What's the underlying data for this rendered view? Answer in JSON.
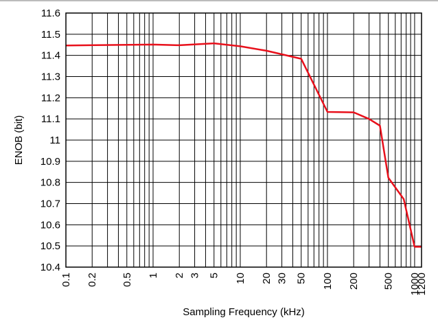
{
  "chart_data": {
    "type": "line",
    "xlabel": "Sampling Frequency (kHz)",
    "ylabel": "ENOB (bit)",
    "x_scale": "log",
    "xlim": [
      0.1,
      1200
    ],
    "ylim": [
      10.4,
      11.6
    ],
    "grid": true,
    "x_ticks": [
      {
        "value": 0.1,
        "label": "0.1"
      },
      {
        "value": 0.2,
        "label": "0.2"
      },
      {
        "value": 0.5,
        "label": "0.5"
      },
      {
        "value": 1,
        "label": "1"
      },
      {
        "value": 2,
        "label": "2"
      },
      {
        "value": 3,
        "label": "3"
      },
      {
        "value": 5,
        "label": "5"
      },
      {
        "value": 10,
        "label": "10"
      },
      {
        "value": 20,
        "label": "20"
      },
      {
        "value": 30,
        "label": "30"
      },
      {
        "value": 50,
        "label": "50"
      },
      {
        "value": 100,
        "label": "100"
      },
      {
        "value": 200,
        "label": "200"
      },
      {
        "value": 500,
        "label": "500"
      },
      {
        "value": 1000,
        "label": "1000"
      },
      {
        "value": 1200,
        "label": "1200"
      }
    ],
    "y_ticks": [
      {
        "value": 11.6,
        "label": "11.6"
      },
      {
        "value": 11.5,
        "label": "11.5"
      },
      {
        "value": 11.4,
        "label": "11.4"
      },
      {
        "value": 11.3,
        "label": "11.3"
      },
      {
        "value": 11.2,
        "label": "11.2"
      },
      {
        "value": 11.1,
        "label": "11.1"
      },
      {
        "value": 11.0,
        "label": "11"
      },
      {
        "value": 10.9,
        "label": "10.9"
      },
      {
        "value": 10.8,
        "label": "10.8"
      },
      {
        "value": 10.7,
        "label": "10.7"
      },
      {
        "value": 10.6,
        "label": "10.6"
      },
      {
        "value": 10.5,
        "label": "10.5"
      },
      {
        "value": 10.4,
        "label": "10.4"
      }
    ],
    "series": [
      {
        "color": "#e8101b",
        "x": [
          0.1,
          1,
          2,
          5,
          10,
          20,
          50,
          100,
          200,
          300,
          400,
          500,
          750,
          1000,
          1200
        ],
        "y": [
          11.447,
          11.451,
          11.448,
          11.457,
          11.443,
          11.422,
          11.384,
          11.133,
          11.131,
          11.1,
          11.068,
          10.822,
          10.721,
          10.496,
          10.496
        ]
      }
    ]
  }
}
